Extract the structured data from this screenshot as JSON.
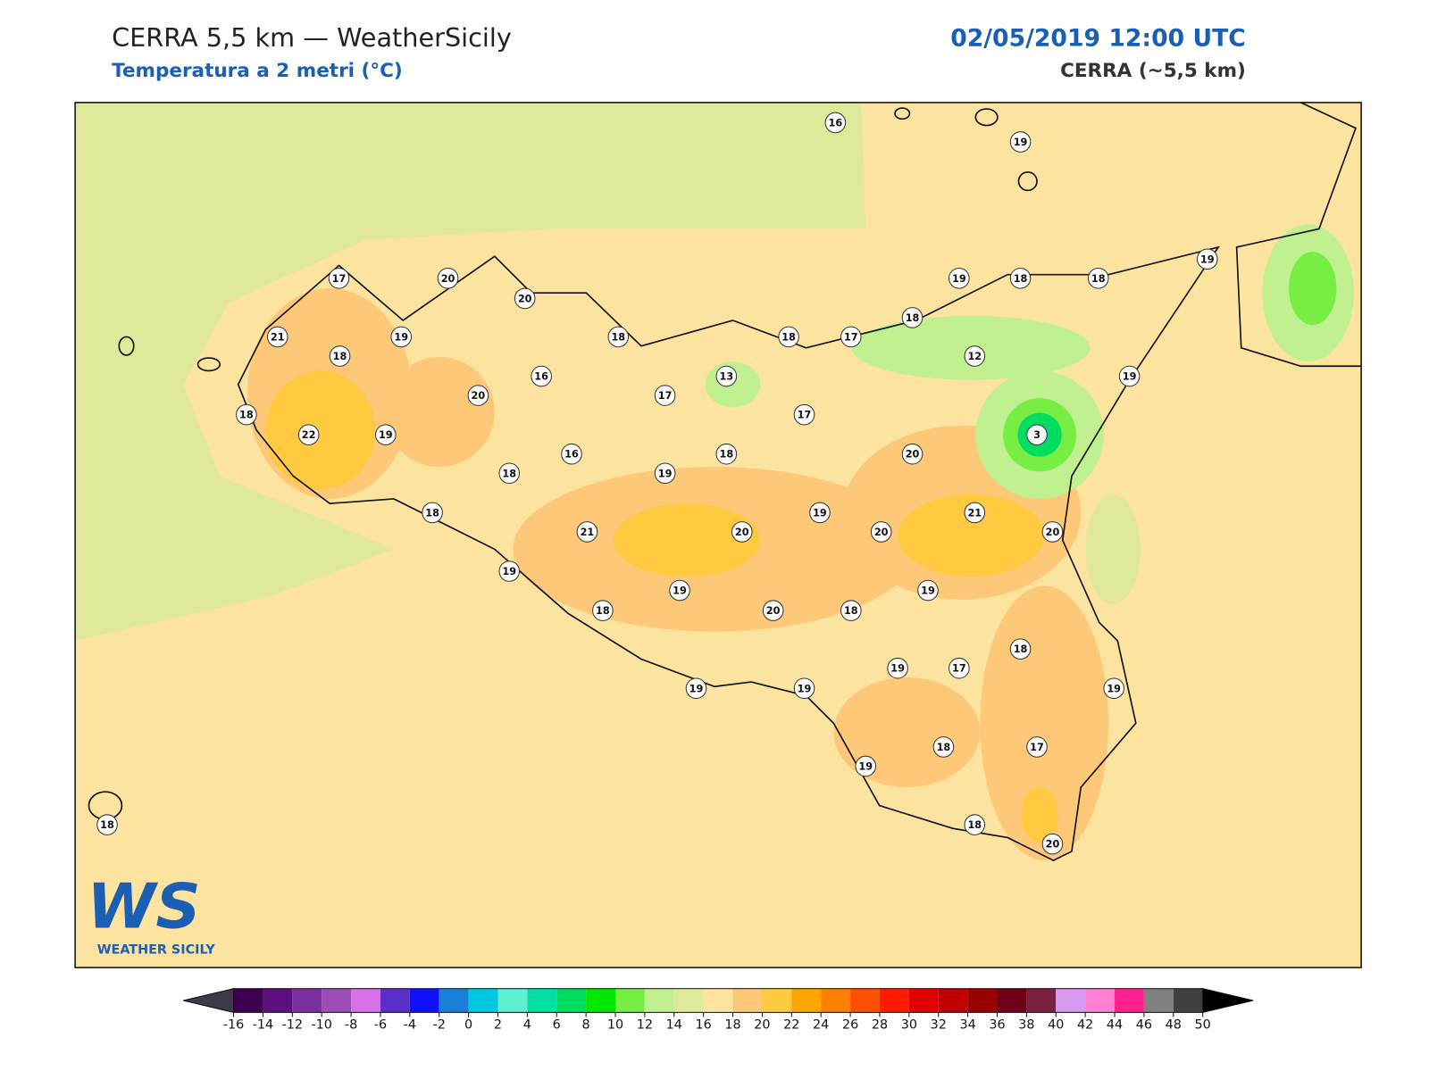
{
  "header": {
    "title": "CERRA 5,5 km — WeatherSicily",
    "subtitle": "Temperatura a 2 metri (°C)",
    "datetime": "02/05/2019 12:00 UTC",
    "model": "CERRA (~5,5 km)"
  },
  "logo": {
    "mark": "WS",
    "caption": "WEATHER SICILY"
  },
  "map": {
    "station_values": [
      16,
      19,
      17,
      20,
      20,
      21,
      19,
      18,
      18,
      18,
      17,
      18,
      19,
      18,
      18,
      19,
      12,
      19,
      16,
      20,
      17,
      13,
      17,
      18,
      22,
      19,
      3,
      16,
      18,
      20,
      18,
      19,
      18,
      21,
      20,
      19,
      20,
      21,
      20,
      19,
      19,
      19,
      18,
      20,
      18,
      18,
      19,
      17,
      19,
      19,
      19,
      18,
      17,
      19,
      18,
      20,
      18
    ]
  },
  "colorbar": {
    "ticks": [
      -16,
      -14,
      -12,
      -10,
      -8,
      -6,
      -4,
      -2,
      0,
      2,
      4,
      6,
      8,
      10,
      12,
      14,
      16,
      18,
      20,
      22,
      24,
      26,
      28,
      30,
      32,
      34,
      36,
      38,
      40,
      42,
      44,
      46,
      48,
      50
    ],
    "colors": [
      "#3d0050",
      "#5c1080",
      "#7a2fa0",
      "#9d4cb8",
      "#d870e8",
      "#5a2ec8",
      "#1010ff",
      "#1a7fd8",
      "#00c8e0",
      "#5ef0d0",
      "#00e0a0",
      "#00dd60",
      "#00e800",
      "#77ee44",
      "#c0f090",
      "#e0e89a",
      "#ffe4a0",
      "#fdc878",
      "#ffc940",
      "#ffa500",
      "#ff8000",
      "#ff5000",
      "#ff1a00",
      "#e00000",
      "#c00000",
      "#9a0000",
      "#6e0018",
      "#7a2040",
      "#d89af0",
      "#ff80d0",
      "#ff2090",
      "#808080",
      "#404040"
    ],
    "under_color": "#3a3a4a",
    "over_color": "#000000"
  }
}
